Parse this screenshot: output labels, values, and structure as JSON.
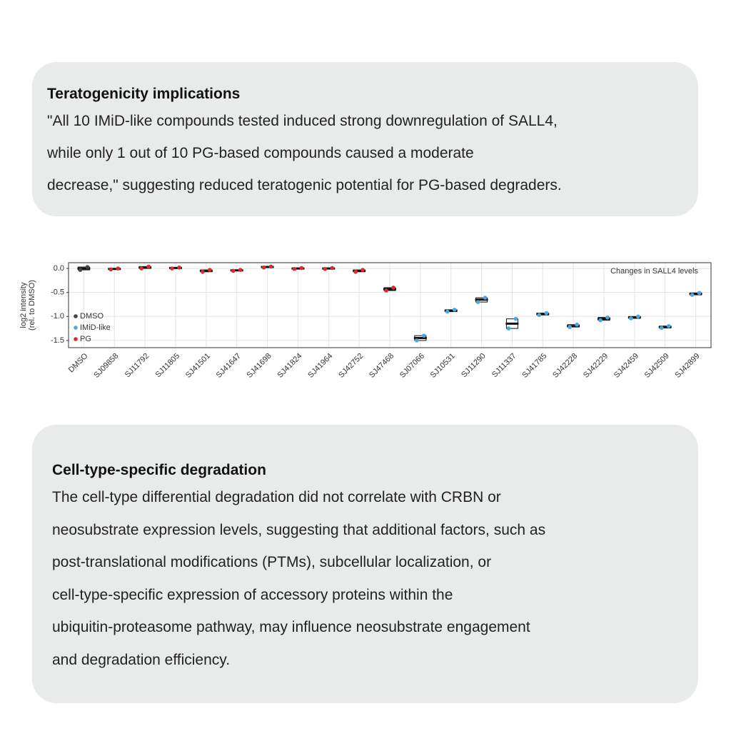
{
  "cards": [
    {
      "title": "Teratogenicity implications",
      "lines": [
        "\"All 10 IMiD-like compounds tested induced strong downregulation of SALL4,",
        "while only 1 out of 10 PG-based compounds caused a moderate",
        "decrease,\" suggesting reduced teratogenic potential for PG-based degraders."
      ]
    },
    {
      "title": "Cell-type-specific degradation",
      "lines": [
        "The cell-type differential degradation did not correlate with CRBN or",
        "neosubstrate expression levels, suggesting that additional factors, such as",
        "post-translational modifications (PTMs), subcellular localization, or",
        "cell-type-specific expression of accessory proteins within the",
        "ubiquitin-proteasome pathway, may influence neosubstrate engagement",
        "and degradation efficiency."
      ]
    }
  ],
  "chart_data": {
    "type": "box",
    "annotation": "Changes in SALL4 levels",
    "ylabel": [
      "log2 intensity",
      "(rel. to DMSO)"
    ],
    "categories": [
      "DMSO",
      "SJ09858",
      "SJ11792",
      "SJ11805",
      "SJ41501",
      "SJ41647",
      "SJ41698",
      "SJ41824",
      "SJ41964",
      "SJ42752",
      "SJ47468",
      "SJ07066",
      "SJ10531",
      "SJ11290",
      "SJ11337",
      "SJ41785",
      "SJ42228",
      "SJ42229",
      "SJ42459",
      "SJ42509",
      "SJ42899"
    ],
    "ylim": [
      -1.65,
      0.12
    ],
    "yticks": [
      {
        "value": 0,
        "label": "0.0"
      },
      {
        "value": -0.5,
        "label": "-0.5"
      },
      {
        "value": -1,
        "label": "-1.0"
      },
      {
        "value": -1.5,
        "label": "-1.5"
      }
    ],
    "grid": true,
    "legend": "bottom-left",
    "series": [
      {
        "name": "DMSO",
        "color": "#444444",
        "median": [
          0,
          null,
          null,
          null,
          null,
          null,
          null,
          null,
          null,
          null,
          null,
          null,
          null,
          null,
          null,
          null,
          null,
          null,
          null,
          null,
          null
        ],
        "q1": [
          -0.03,
          null,
          null,
          null,
          null,
          null,
          null,
          null,
          null,
          null,
          null,
          null,
          null,
          null,
          null,
          null,
          null,
          null,
          null,
          null,
          null
        ],
        "q3": [
          0.03,
          null,
          null,
          null,
          null,
          null,
          null,
          null,
          null,
          null,
          null,
          null,
          null,
          null,
          null,
          null,
          null,
          null,
          null,
          null,
          null
        ]
      },
      {
        "name": "IMiD-like",
        "color": "#4aa8e0",
        "median": [
          null,
          null,
          null,
          null,
          null,
          null,
          null,
          null,
          null,
          null,
          null,
          -1.45,
          -0.88,
          -0.65,
          -1.15,
          -0.95,
          -1.2,
          -1.05,
          -1.02,
          -1.22,
          -0.53
        ],
        "q1": [
          null,
          null,
          null,
          null,
          null,
          null,
          null,
          null,
          null,
          null,
          null,
          -1.5,
          -0.9,
          -0.7,
          -1.25,
          -0.97,
          -1.22,
          -1.08,
          -1.04,
          -1.24,
          -0.55
        ],
        "q3": [
          null,
          null,
          null,
          null,
          null,
          null,
          null,
          null,
          null,
          null,
          null,
          -1.4,
          -0.86,
          -0.61,
          -1.05,
          -0.93,
          -1.17,
          -1.02,
          -1.0,
          -1.2,
          -0.51
        ]
      },
      {
        "name": "PG",
        "color": "#d62d2d",
        "median": [
          null,
          -0.01,
          0.02,
          0.01,
          -0.05,
          -0.04,
          0.03,
          0,
          0,
          -0.05,
          -0.43,
          null,
          null,
          null,
          null,
          null,
          null,
          null,
          null,
          null,
          null
        ],
        "q1": [
          null,
          -0.02,
          0,
          0,
          -0.07,
          -0.05,
          0.02,
          -0.01,
          -0.01,
          -0.07,
          -0.46,
          null,
          null,
          null,
          null,
          null,
          null,
          null,
          null,
          null,
          null
        ],
        "q3": [
          null,
          0,
          0.04,
          0.02,
          -0.03,
          -0.03,
          0.04,
          0.01,
          0.01,
          -0.03,
          -0.4,
          null,
          null,
          null,
          null,
          null,
          null,
          null,
          null,
          null,
          null
        ]
      }
    ]
  }
}
